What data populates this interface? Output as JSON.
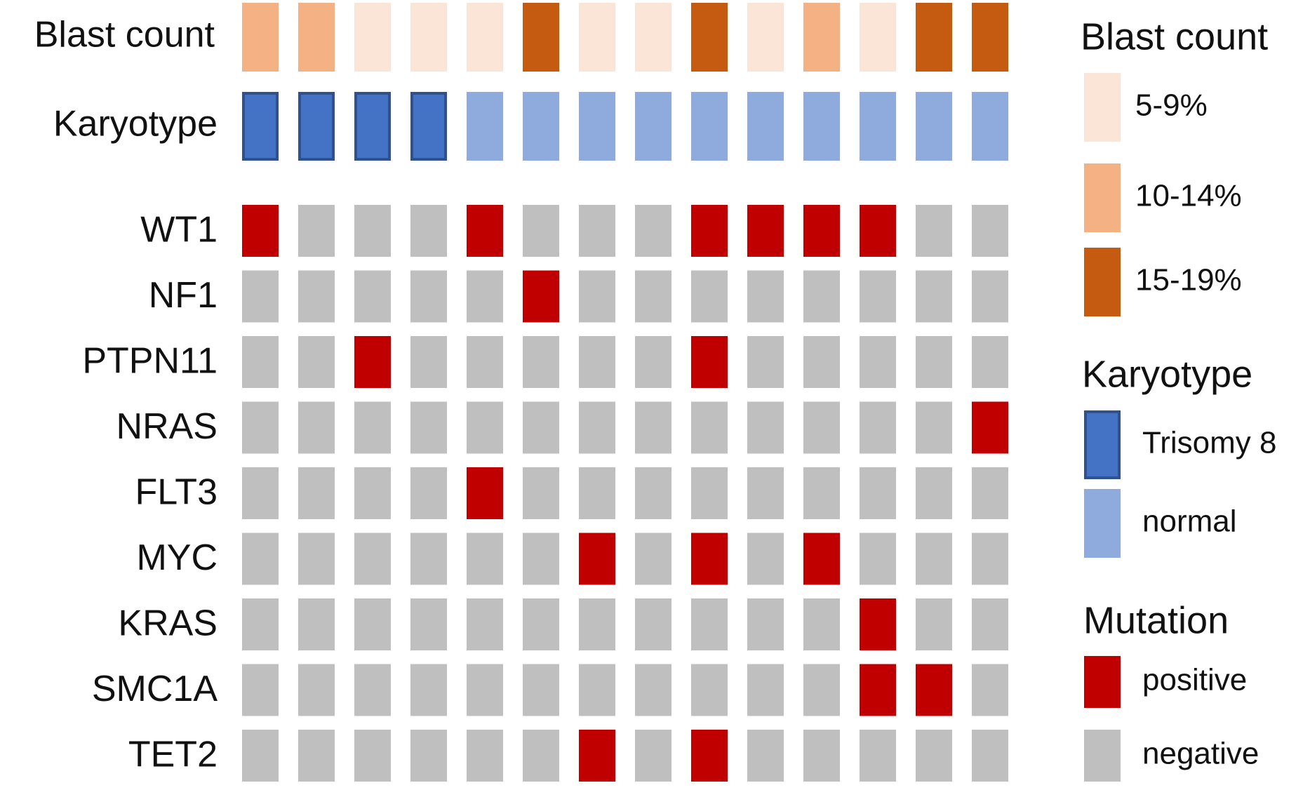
{
  "chart_data": {
    "type": "oncoprint",
    "tracks": [
      {
        "name": "Blast count",
        "legend": [
          "5-9%",
          "10-14%",
          "15-19%"
        ],
        "colors": [
          "#fbe5d6",
          "#f4b183",
          "#c55a11"
        ],
        "values": [
          1,
          1,
          0,
          0,
          0,
          2,
          0,
          0,
          2,
          0,
          1,
          0,
          2,
          2
        ]
      },
      {
        "name": "Karyotype",
        "legend": [
          "Trisomy 8",
          "normal"
        ],
        "colors": [
          "#4472c4",
          "#8faadc"
        ],
        "borders": [
          "#2f528f",
          null
        ],
        "values": [
          0,
          0,
          0,
          0,
          1,
          1,
          1,
          1,
          1,
          1,
          1,
          1,
          1,
          1
        ]
      }
    ],
    "mutations": {
      "name": "Mutation",
      "legend": [
        "positive",
        "negative"
      ],
      "colors": [
        "#c00000",
        "#bfbfbf"
      ],
      "rows": [
        {
          "name": "WT1",
          "values": [
            0,
            1,
            1,
            1,
            0,
            1,
            1,
            1,
            0,
            0,
            0,
            0,
            1,
            1
          ]
        },
        {
          "name": "NF1",
          "values": [
            1,
            1,
            1,
            1,
            1,
            0,
            1,
            1,
            1,
            1,
            1,
            1,
            1,
            1
          ]
        },
        {
          "name": "PTPN11",
          "values": [
            1,
            1,
            0,
            1,
            1,
            1,
            1,
            1,
            0,
            1,
            1,
            1,
            1,
            1
          ]
        },
        {
          "name": "NRAS",
          "values": [
            1,
            1,
            1,
            1,
            1,
            1,
            1,
            1,
            1,
            1,
            1,
            1,
            1,
            0
          ]
        },
        {
          "name": "FLT3",
          "values": [
            1,
            1,
            1,
            1,
            0,
            1,
            1,
            1,
            1,
            1,
            1,
            1,
            1,
            1
          ]
        },
        {
          "name": "MYC",
          "values": [
            1,
            1,
            1,
            1,
            1,
            1,
            0,
            1,
            0,
            1,
            0,
            1,
            1,
            1
          ]
        },
        {
          "name": "KRAS",
          "values": [
            1,
            1,
            1,
            1,
            1,
            1,
            1,
            1,
            1,
            1,
            1,
            0,
            1,
            1
          ]
        },
        {
          "name": "SMC1A",
          "values": [
            1,
            1,
            1,
            1,
            1,
            1,
            1,
            1,
            1,
            1,
            1,
            0,
            0,
            1
          ]
        },
        {
          "name": "TET2",
          "values": [
            1,
            1,
            1,
            1,
            1,
            1,
            0,
            1,
            0,
            1,
            1,
            1,
            1,
            1
          ]
        }
      ]
    }
  }
}
